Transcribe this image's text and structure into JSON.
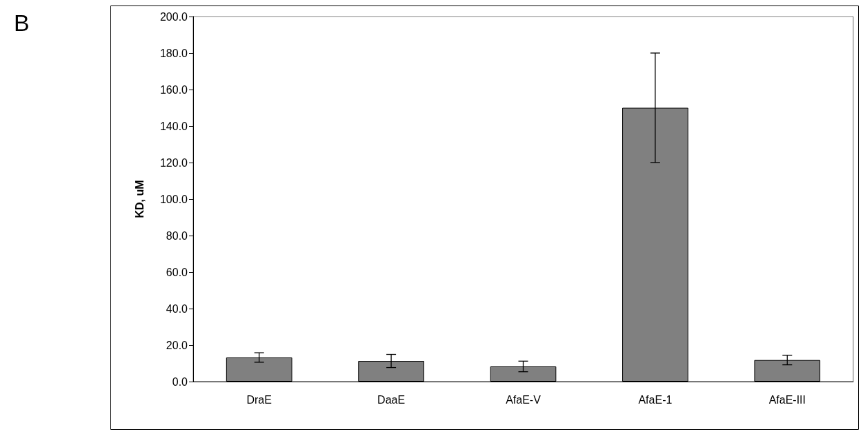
{
  "chart_data": {
    "type": "bar",
    "ylabel": "KD, uM",
    "annotations": [
      "B"
    ],
    "categories": [
      "DraE",
      "DaaE",
      "AfaE-V",
      "AfaE-1",
      "AfaE-III"
    ],
    "values": [
      13.2,
      11.3,
      8.3,
      150,
      11.8
    ],
    "errors": [
      2.6,
      3.6,
      2.9,
      30,
      2.6
    ],
    "color": "#808080",
    "ylim": [
      0,
      200
    ],
    "yticks": [
      {
        "value": 0,
        "label": "0.0"
      },
      {
        "value": 20,
        "label": "20.0"
      },
      {
        "value": 40,
        "label": "40.0"
      },
      {
        "value": 60,
        "label": "60.0"
      },
      {
        "value": 80,
        "label": "80.0"
      },
      {
        "value": 100,
        "label": "100.0"
      },
      {
        "value": 120,
        "label": "120.0"
      },
      {
        "value": 140,
        "label": "140.0"
      },
      {
        "value": 160,
        "label": "160.0"
      },
      {
        "value": 180,
        "label": "180.0"
      },
      {
        "value": 200,
        "label": "200.0"
      }
    ],
    "grid": false
  }
}
